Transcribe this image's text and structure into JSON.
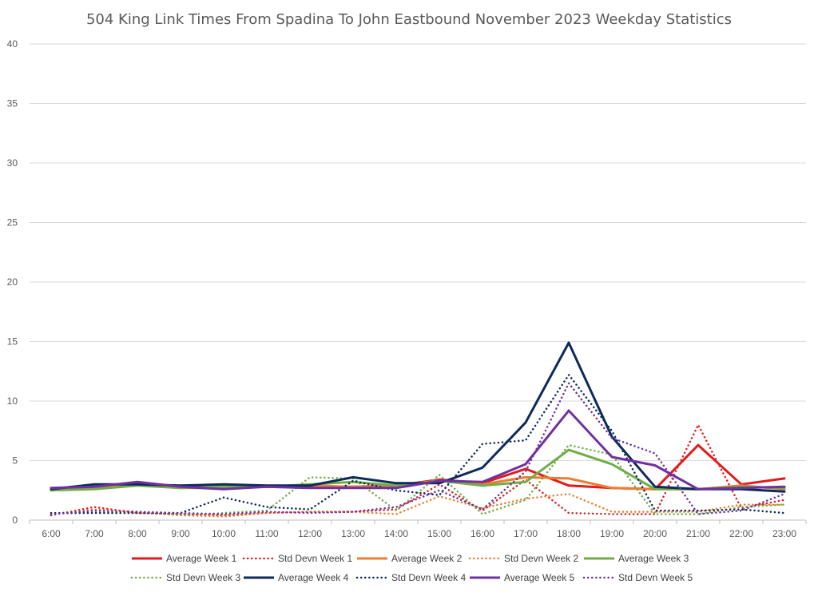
{
  "chart_data": {
    "type": "line",
    "title": "504 King Link Times From Spadina To John Eastbound November 2023 Weekday Statistics",
    "xlabel": "",
    "ylabel": "",
    "ylim": [
      0,
      40
    ],
    "yticks": [
      0,
      5,
      10,
      15,
      20,
      25,
      30,
      35,
      40
    ],
    "grid": true,
    "legend": "bottom",
    "categories": [
      "6:00",
      "7:00",
      "8:00",
      "9:00",
      "10:00",
      "11:00",
      "12:00",
      "13:00",
      "14:00",
      "15:00",
      "16:00",
      "17:00",
      "18:00",
      "19:00",
      "20:00",
      "21:00",
      "22:00",
      "23:00"
    ],
    "series": [
      {
        "name": "Average Week 1",
        "color": "#e31a1c",
        "style": "solid",
        "values": [
          2.6,
          2.7,
          3.0,
          2.8,
          2.7,
          2.8,
          2.8,
          2.8,
          2.9,
          3.4,
          3.1,
          4.3,
          2.9,
          2.7,
          2.6,
          6.3,
          3.0,
          3.5
        ]
      },
      {
        "name": "Std Devn Week 1",
        "color": "#e31a1c",
        "style": "dotted",
        "values": [
          0.4,
          1.1,
          0.6,
          0.5,
          0.4,
          0.6,
          0.7,
          0.7,
          0.9,
          3.0,
          0.8,
          3.4,
          0.6,
          0.5,
          0.5,
          8.0,
          1.0,
          1.7
        ]
      },
      {
        "name": "Average Week 2",
        "color": "#ed7d31",
        "style": "solid",
        "values": [
          2.6,
          2.7,
          3.0,
          2.7,
          2.7,
          2.8,
          2.9,
          2.8,
          2.9,
          3.3,
          3.0,
          3.6,
          3.5,
          2.7,
          2.6,
          2.6,
          2.9,
          2.6
        ]
      },
      {
        "name": "Std Devn Week 2",
        "color": "#ed7d31",
        "style": "dotted",
        "values": [
          0.5,
          0.9,
          0.7,
          0.4,
          0.3,
          0.6,
          0.7,
          0.7,
          0.5,
          2.0,
          1.0,
          1.8,
          2.2,
          0.7,
          0.7,
          0.7,
          1.3,
          1.3
        ]
      },
      {
        "name": "Average Week 3",
        "color": "#70ad47",
        "style": "solid",
        "values": [
          2.5,
          2.6,
          2.9,
          2.7,
          2.8,
          2.8,
          3.0,
          3.2,
          2.9,
          3.3,
          2.9,
          3.2,
          5.9,
          4.7,
          2.6,
          2.6,
          2.8,
          2.7
        ]
      },
      {
        "name": "Std Devn Week 3",
        "color": "#70ad47",
        "style": "dotted",
        "values": [
          0.5,
          0.7,
          0.7,
          0.4,
          0.6,
          0.8,
          3.6,
          3.5,
          0.8,
          3.8,
          0.5,
          1.7,
          6.3,
          5.5,
          0.5,
          0.5,
          1.1,
          1.3
        ]
      },
      {
        "name": "Average Week 4",
        "color": "#0d2a5c",
        "style": "solid",
        "values": [
          2.6,
          3.0,
          3.0,
          2.9,
          3.0,
          2.9,
          2.9,
          3.6,
          3.1,
          3.1,
          4.4,
          8.2,
          14.9,
          7.0,
          2.8,
          2.6,
          2.6,
          2.4
        ]
      },
      {
        "name": "Std Devn Week 4",
        "color": "#0d2a5c",
        "style": "dotted",
        "values": [
          0.6,
          0.6,
          0.6,
          0.6,
          1.9,
          1.1,
          0.9,
          3.3,
          2.5,
          2.1,
          6.4,
          6.7,
          12.2,
          7.5,
          0.8,
          0.8,
          0.9,
          0.6
        ]
      },
      {
        "name": "Average Week 5",
        "color": "#7030a0",
        "style": "solid",
        "values": [
          2.7,
          2.8,
          3.2,
          2.8,
          2.6,
          2.8,
          2.7,
          2.7,
          2.7,
          3.3,
          3.2,
          4.7,
          9.2,
          5.3,
          4.6,
          2.6,
          2.7,
          2.8
        ]
      },
      {
        "name": "Std Devn Week 5",
        "color": "#7030a0",
        "style": "dotted",
        "values": [
          0.5,
          0.8,
          0.7,
          0.6,
          0.5,
          0.7,
          0.6,
          0.7,
          1.1,
          2.5,
          0.9,
          4.1,
          11.5,
          6.9,
          5.6,
          0.5,
          0.8,
          2.2
        ]
      }
    ]
  }
}
